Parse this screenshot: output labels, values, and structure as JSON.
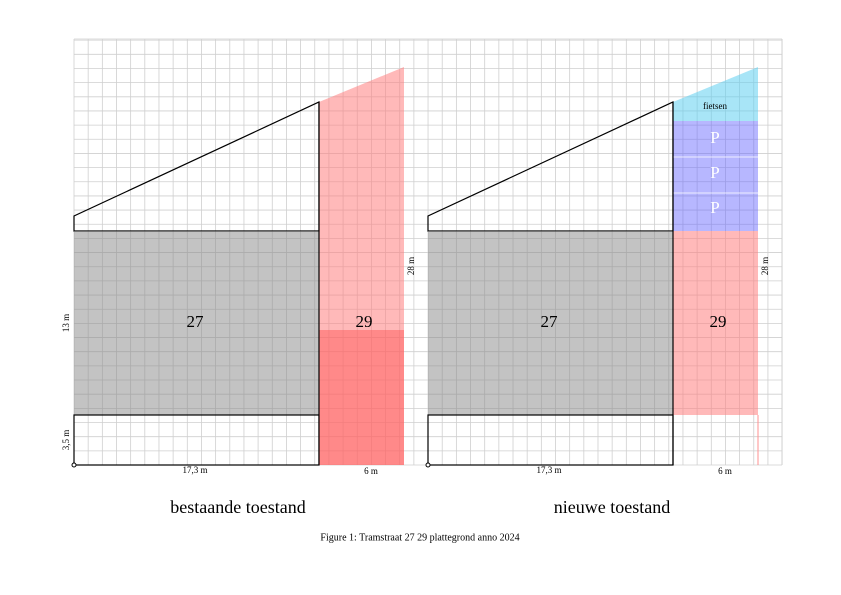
{
  "plans": [
    {
      "building_27": "27",
      "building_29": "29",
      "depth_front": "13 m",
      "depth_back": "3,5 m",
      "width_27": "17,3 m",
      "width_29": "6 m",
      "length_29": "28 m",
      "caption": "bestaande toestand"
    },
    {
      "building_27": "27",
      "building_29": "29",
      "width_27": "17,3 m",
      "width_29": "6 m",
      "length_29": "28 m",
      "bikes": "fietsen",
      "parking": [
        "P",
        "P",
        "P"
      ],
      "caption": "nieuwe toestand"
    }
  ],
  "figure_caption": "Figure 1: Tramstraat 27 29 plattegrond anno 2024"
}
